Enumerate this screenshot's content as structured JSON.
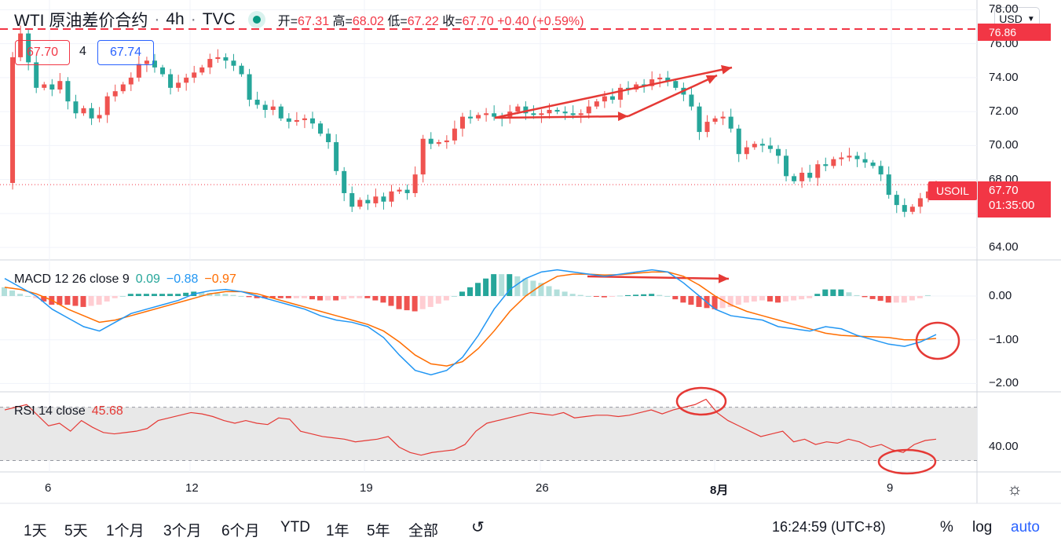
{
  "header": {
    "symbol": "WTI 原油差价合约",
    "sep1": "·",
    "interval": "4h",
    "sep2": "·",
    "source": "TVC",
    "open_label": "开=",
    "open": "67.31",
    "high_label": "高=",
    "high": "68.02",
    "low_label": "低=",
    "low": "67.22",
    "close_label": "收=",
    "close": "67.70",
    "change": "+0.40 (+0.59%)"
  },
  "quote": {
    "bid": "67.70",
    "spread": "4",
    "ask": "67.74"
  },
  "currency_button": "USD",
  "price_axis": {
    "ticks": [
      "78.00",
      "76.00",
      "74.00",
      "72.00",
      "70.00",
      "68.00",
      "66.00",
      "64.00"
    ],
    "alert_level": "76.86",
    "last_symbol": "USOIL",
    "last_price": "67.70",
    "countdown": "01:35:00"
  },
  "macd": {
    "title": "MACD 12 26 close 9",
    "histogram": "0.09",
    "macd": "−0.88",
    "signal": "−0.97",
    "ticks": [
      "0.00",
      "−1.00",
      "−2.00"
    ]
  },
  "rsi": {
    "title": "RSI 14 close",
    "value": "45.68",
    "ticks": [
      "40.00"
    ]
  },
  "time_axis": [
    "6",
    "12",
    "19",
    "26",
    "8月",
    "9"
  ],
  "toolbar": {
    "ranges": [
      "1天",
      "5天",
      "1个月",
      "3个月",
      "6个月",
      "YTD",
      "1年",
      "5年",
      "全部"
    ],
    "clock": "16:24:59 (UTC+8)",
    "percent": "%",
    "log": "log",
    "auto": "auto"
  },
  "colors": {
    "up": "#26a69a",
    "down": "#ef5350",
    "up_dark": "#089981",
    "down_dark": "#f23645",
    "macd_line": "#2196f3",
    "signal_line": "#ff6d00",
    "rsi_line": "#e53935",
    "annotation": "#e53935"
  },
  "chart_data": [
    {
      "type": "candlestick",
      "title": "WTI 原油差价合约 · 4h · TVC",
      "ylim": [
        63.5,
        78.2
      ],
      "y_ticks": [
        64,
        66,
        68,
        70,
        72,
        74,
        76,
        78
      ],
      "x_ticks": [
        "6",
        "12",
        "19",
        "26",
        "8月",
        "9"
      ],
      "last_close": 67.7,
      "alert_line": 76.86,
      "close_series": [
        67.8,
        75.2,
        76.6,
        74.9,
        73.4,
        73.6,
        73.3,
        73.8,
        72.6,
        71.9,
        72.2,
        71.6,
        71.8,
        72.9,
        73.2,
        73.6,
        74.0,
        74.8,
        75.0,
        74.6,
        74.2,
        73.4,
        73.7,
        74.0,
        74.3,
        74.6,
        75.1,
        75.2,
        75.0,
        74.7,
        74.2,
        72.7,
        72.4,
        72.1,
        72.3,
        71.6,
        71.4,
        71.5,
        71.6,
        71.3,
        70.7,
        70.2,
        68.5,
        67.2,
        66.4,
        66.8,
        66.6,
        67.0,
        66.7,
        67.3,
        67.4,
        67.2,
        68.3,
        70.4,
        70.1,
        70.2,
        70.3,
        71.0,
        71.7,
        71.6,
        71.8,
        71.9,
        71.7,
        71.6,
        72.0,
        72.3,
        71.9,
        71.8,
        71.9,
        72.1,
        72.0,
        71.9,
        71.8,
        71.9,
        72.3,
        72.6,
        72.9,
        72.7,
        73.4,
        73.3,
        73.6,
        73.5,
        73.9,
        74.0,
        73.8,
        73.4,
        73.0,
        72.3,
        70.8,
        71.4,
        71.6,
        71.7,
        71.0,
        69.5,
        69.9,
        70.1,
        70.0,
        69.8,
        69.4,
        68.2,
        67.9,
        68.4,
        68.1,
        68.9,
        68.8,
        69.2,
        69.3,
        69.4,
        69.2,
        69.0,
        68.8,
        68.3,
        67.1,
        66.5,
        66.1,
        66.4,
        66.9,
        67.3,
        67.7
      ],
      "annotations": [
        "upward arrow on price highs",
        "upward arrow on price highs (steeper)"
      ]
    },
    {
      "type": "macd",
      "params": "MACD 12 26 close 9",
      "ylim": [
        -2.1,
        0.7
      ],
      "y_ticks": [
        0,
        -1,
        -2
      ],
      "latest": {
        "histogram": 0.09,
        "macd": -0.88,
        "signal": -0.97
      },
      "macd_series": [
        0.4,
        0.2,
        0.0,
        -0.3,
        -0.5,
        -0.7,
        -0.8,
        -0.6,
        -0.4,
        -0.3,
        -0.2,
        -0.1,
        0.05,
        0.12,
        0.15,
        0.1,
        0.0,
        -0.1,
        -0.2,
        -0.3,
        -0.45,
        -0.55,
        -0.6,
        -0.7,
        -0.95,
        -1.35,
        -1.7,
        -1.8,
        -1.7,
        -1.4,
        -0.9,
        -0.3,
        0.15,
        0.4,
        0.55,
        0.6,
        0.55,
        0.5,
        0.45,
        0.5,
        0.55,
        0.6,
        0.55,
        0.3,
        0.0,
        -0.3,
        -0.45,
        -0.5,
        -0.55,
        -0.7,
        -0.75,
        -0.8,
        -0.7,
        -0.75,
        -0.9,
        -1.0,
        -1.1,
        -1.15,
        -1.05,
        -0.88
      ],
      "signal_series": [
        0.2,
        0.15,
        0.05,
        -0.1,
        -0.3,
        -0.45,
        -0.6,
        -0.55,
        -0.45,
        -0.35,
        -0.25,
        -0.15,
        -0.05,
        0.05,
        0.1,
        0.1,
        0.05,
        -0.05,
        -0.15,
        -0.25,
        -0.35,
        -0.45,
        -0.55,
        -0.65,
        -0.8,
        -1.05,
        -1.35,
        -1.55,
        -1.6,
        -1.5,
        -1.2,
        -0.8,
        -0.35,
        0.0,
        0.25,
        0.45,
        0.5,
        0.5,
        0.48,
        0.49,
        0.52,
        0.55,
        0.55,
        0.45,
        0.25,
        0.0,
        -0.2,
        -0.35,
        -0.45,
        -0.55,
        -0.65,
        -0.75,
        -0.85,
        -0.9,
        -0.92,
        -0.93,
        -0.95,
        -1.0,
        -1.0,
        -0.97
      ]
    },
    {
      "type": "line",
      "params": "RSI 14 close",
      "ylim": [
        22,
        81
      ],
      "bands": [
        30,
        70
      ],
      "y_ticks": [
        40
      ],
      "latest": 45.68,
      "series": [
        68,
        70,
        72,
        64,
        56,
        58,
        52,
        60,
        55,
        51,
        50,
        51,
        52,
        54,
        60,
        62,
        64,
        66,
        65,
        63,
        60,
        58,
        60,
        58,
        57,
        62,
        61,
        52,
        50,
        48,
        47,
        46,
        44,
        45,
        46,
        48,
        40,
        36,
        34,
        36,
        37,
        38,
        42,
        52,
        58,
        60,
        62,
        64,
        66,
        65,
        64,
        66,
        62,
        63,
        64,
        64,
        63,
        64,
        66,
        68,
        65,
        68,
        70,
        72,
        76,
        66,
        60,
        56,
        52,
        48,
        50,
        52,
        44,
        46,
        42,
        44,
        43,
        46,
        44,
        40,
        42,
        38,
        36,
        42,
        45,
        46
      ]
    }
  ]
}
